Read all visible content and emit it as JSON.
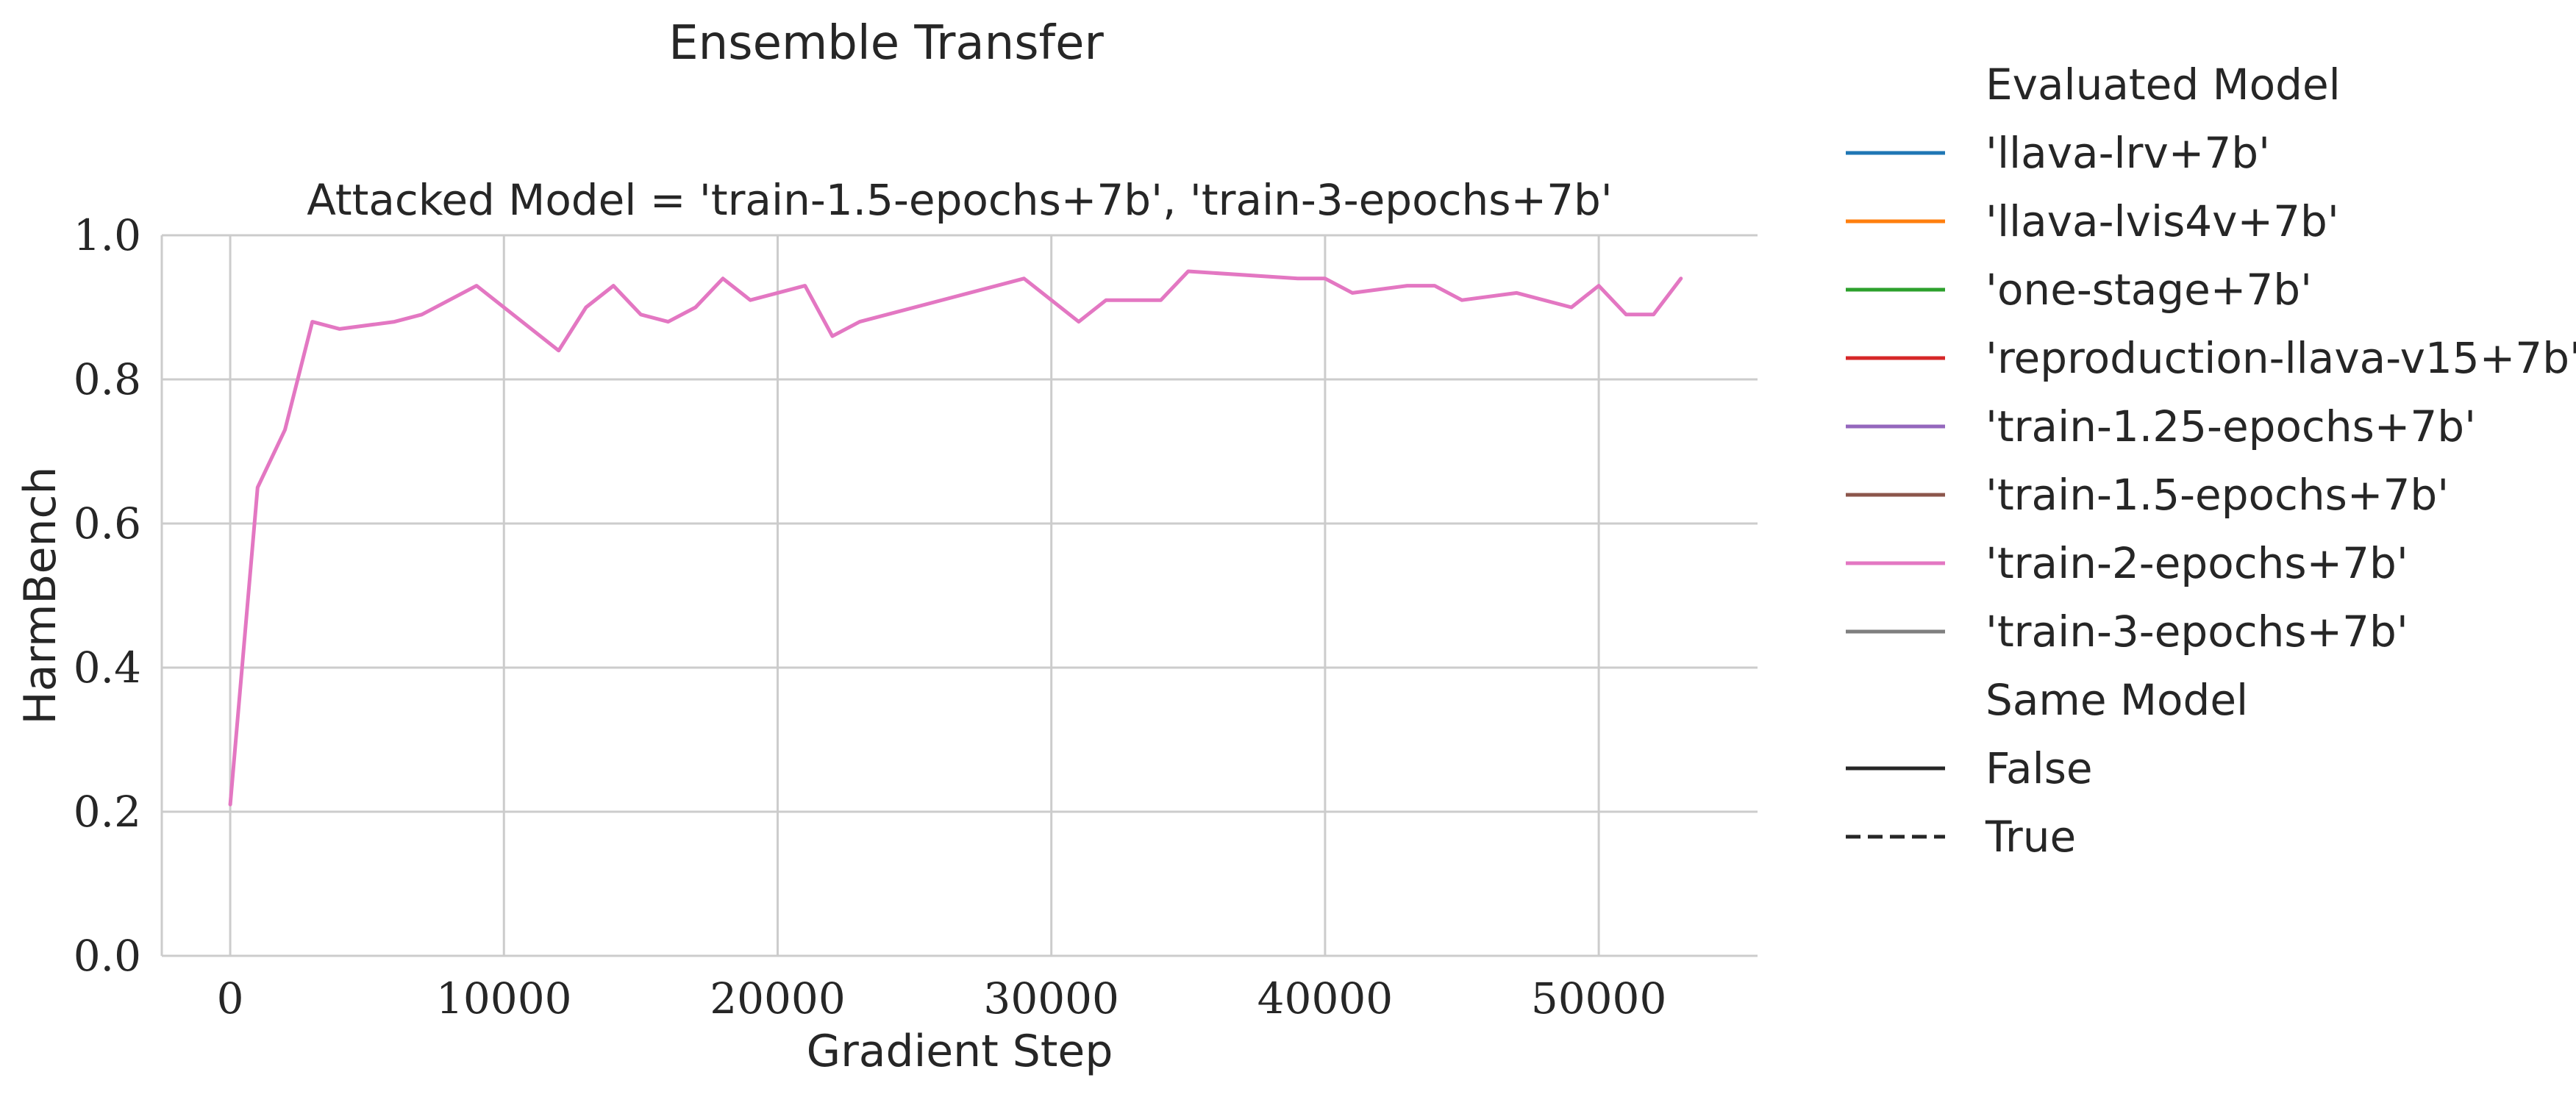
{
  "figure": {
    "suptitle": "Ensemble Transfer",
    "panel_title": "Attacked Model = 'train-1.5-epochs+7b', 'train-3-epochs+7b'"
  },
  "chart_data": {
    "type": "line",
    "title": "Attacked Model = 'train-1.5-epochs+7b', 'train-3-epochs+7b'",
    "xlabel": "Gradient Step",
    "ylabel": "HarmBench",
    "xlim": [
      -2500,
      55800
    ],
    "ylim": [
      0.0,
      1.0
    ],
    "x_ticks": [
      0,
      10000,
      20000,
      30000,
      40000,
      50000
    ],
    "y_ticks": [
      0.0,
      0.2,
      0.4,
      0.6,
      0.8,
      1.0
    ],
    "x_tick_labels": [
      "0",
      "10000",
      "20000",
      "30000",
      "40000",
      "50000"
    ],
    "y_tick_labels": [
      "0.0",
      "0.2",
      "0.4",
      "0.6",
      "0.8",
      "1.0"
    ],
    "grid": true,
    "legend_position": "outside-right",
    "series": [
      {
        "name": "'train-2-epochs+7b'",
        "color": "#e377c2",
        "linestyle": "solid",
        "x": [
          0,
          1000,
          2000,
          3000,
          4000,
          6000,
          7000,
          9000,
          12000,
          13000,
          14000,
          15000,
          16000,
          17000,
          18000,
          19000,
          21000,
          22000,
          23000,
          29000,
          31000,
          32000,
          34000,
          35000,
          39000,
          40000,
          41000,
          43000,
          44000,
          45000,
          47000,
          49000,
          50000,
          51000,
          52000,
          53000
        ],
        "y": [
          0.21,
          0.65,
          0.73,
          0.88,
          0.87,
          0.88,
          0.89,
          0.93,
          0.84,
          0.9,
          0.93,
          0.89,
          0.88,
          0.9,
          0.94,
          0.91,
          0.93,
          0.86,
          0.88,
          0.94,
          0.88,
          0.91,
          0.91,
          0.95,
          0.94,
          0.94,
          0.92,
          0.93,
          0.93,
          0.91,
          0.92,
          0.9,
          0.93,
          0.89,
          0.89,
          0.94
        ]
      }
    ]
  },
  "legend": {
    "hue_title": "Evaluated Model",
    "hue_entries": [
      {
        "label": "'llava-lrv+7b'",
        "color": "#1f77b4"
      },
      {
        "label": "'llava-lvis4v+7b'",
        "color": "#ff7f0e"
      },
      {
        "label": "'one-stage+7b'",
        "color": "#2ca02c"
      },
      {
        "label": "'reproduction-llava-v15+7b'",
        "color": "#d62728"
      },
      {
        "label": "'train-1.25-epochs+7b'",
        "color": "#9467bd"
      },
      {
        "label": "'train-1.5-epochs+7b'",
        "color": "#8c564b"
      },
      {
        "label": "'train-2-epochs+7b'",
        "color": "#e377c2"
      },
      {
        "label": "'train-3-epochs+7b'",
        "color": "#7f7f7f"
      }
    ],
    "style_title": "Same Model",
    "style_entries": [
      {
        "label": "False",
        "color": "#262626",
        "dash": "solid"
      },
      {
        "label": "True",
        "color": "#262626",
        "dash": "dashed"
      }
    ]
  }
}
